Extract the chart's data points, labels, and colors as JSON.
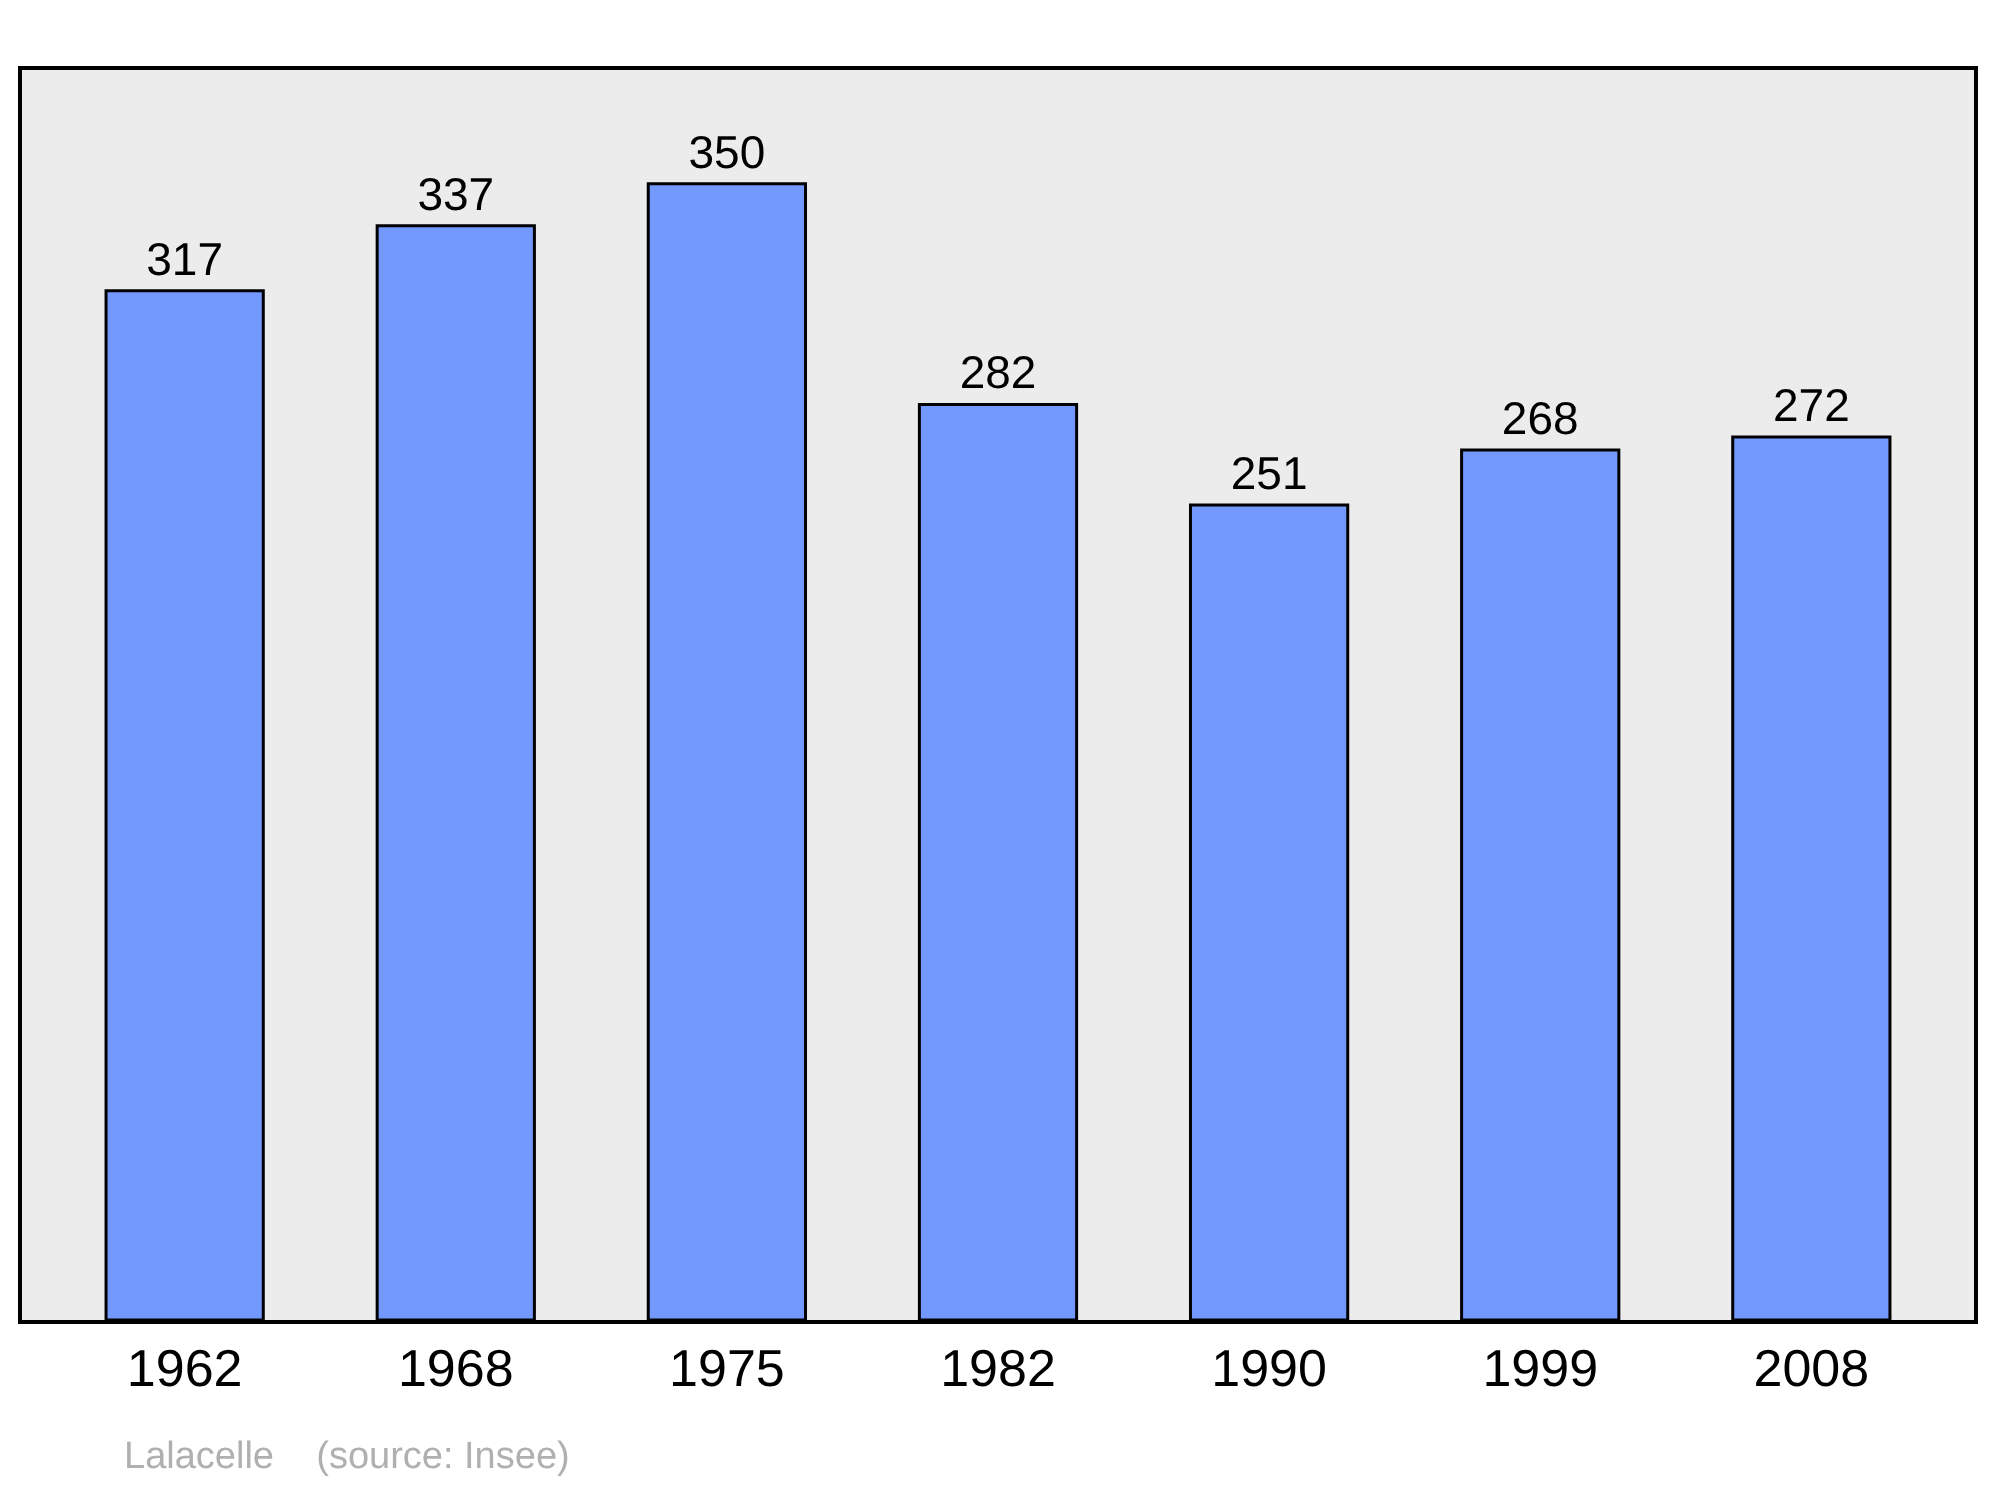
{
  "chart_data": {
    "type": "bar",
    "categories": [
      "1962",
      "1968",
      "1975",
      "1982",
      "1990",
      "1999",
      "2008"
    ],
    "values": [
      317,
      337,
      350,
      282,
      251,
      268,
      272
    ],
    "color": "#7399ff",
    "data_labels": true,
    "ylim": [
      0,
      385
    ],
    "tick_labels": "x",
    "grid": false,
    "legend": false,
    "annotations": [
      "Lalacelle    (source: Insee)"
    ]
  }
}
